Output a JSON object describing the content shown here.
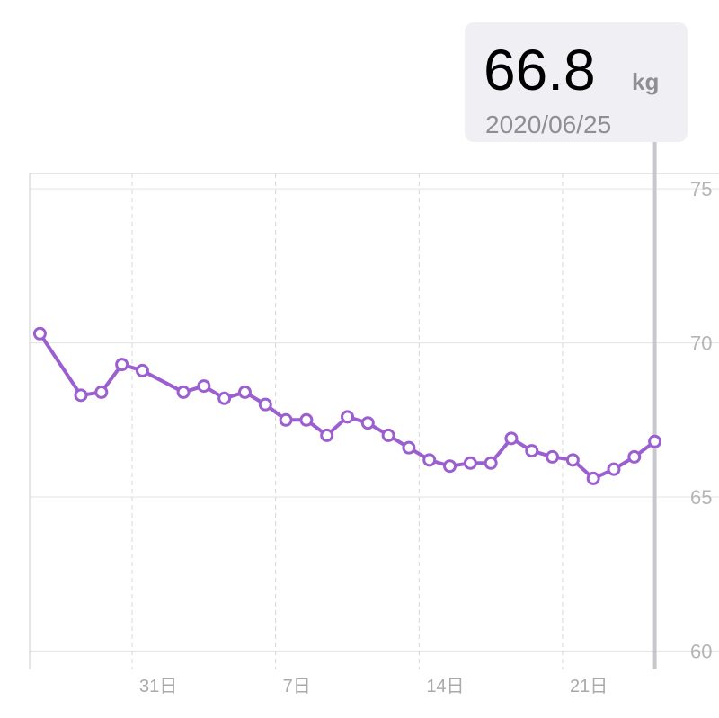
{
  "chart_data": {
    "type": "line",
    "unit": "kg",
    "x": [
      "2020/05/26",
      "2020/05/28",
      "2020/05/29",
      "2020/05/30",
      "2020/05/31",
      "2020/06/02",
      "2020/06/03",
      "2020/06/04",
      "2020/06/05",
      "2020/06/06",
      "2020/06/07",
      "2020/06/08",
      "2020/06/09",
      "2020/06/10",
      "2020/06/11",
      "2020/06/12",
      "2020/06/13",
      "2020/06/14",
      "2020/06/15",
      "2020/06/16",
      "2020/06/17",
      "2020/06/18",
      "2020/06/19",
      "2020/06/20",
      "2020/06/21",
      "2020/06/22",
      "2020/06/23",
      "2020/06/24",
      "2020/06/25"
    ],
    "values": [
      70.3,
      68.3,
      68.4,
      69.3,
      69.1,
      68.4,
      68.6,
      68.2,
      68.4,
      68.0,
      67.5,
      67.5,
      67.0,
      67.6,
      67.4,
      67.0,
      66.6,
      66.2,
      66.0,
      66.1,
      66.1,
      66.9,
      66.5,
      66.3,
      66.2,
      65.6,
      65.9,
      66.3,
      66.8
    ],
    "color": "#9b5fcf",
    "xlim": [
      "2020/05/26",
      "2020/06/26"
    ],
    "xticks": [
      {
        "value": "2020/05/31",
        "label": "31日"
      },
      {
        "value": "2020/06/07",
        "label": "7日"
      },
      {
        "value": "2020/06/14",
        "label": "14日"
      },
      {
        "value": "2020/06/21",
        "label": "21日"
      }
    ],
    "ylim": [
      59.4,
      75.5
    ],
    "yticks": [
      60,
      65,
      70,
      75
    ],
    "grid": true
  }
}
